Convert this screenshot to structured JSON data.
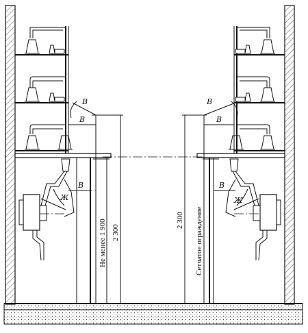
{
  "labels": {
    "clearance": "В",
    "clearance_g": "Ж",
    "dim_left_min": "Не менее 1 900",
    "dim_left_2300": "2 300",
    "dim_right_2300": "2 300",
    "fence_label": "Сетчатое ограждение"
  }
}
